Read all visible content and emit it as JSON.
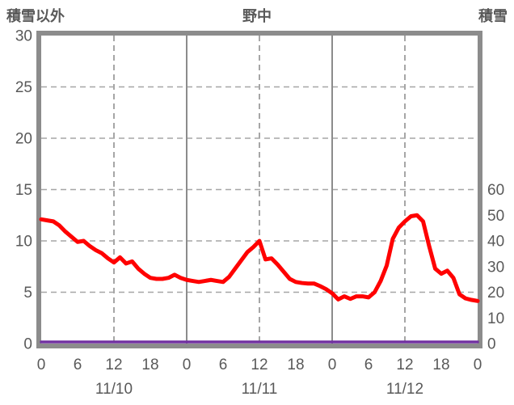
{
  "header": {
    "left_axis_title": "積雪以外",
    "chart_title": "野中",
    "right_axis_title": "積雪"
  },
  "colors": {
    "red_line": "#FF0000",
    "purple_line": "#7030A0",
    "axis_border": "#8C8C8C",
    "gridline_dashed": "#A6A6A6",
    "gridline_solid": "#8C8C8C",
    "label_text": "#595959"
  },
  "chart_data": {
    "type": "line",
    "title": "野中",
    "x_hours_range": [
      0,
      72
    ],
    "x_tick_interval_hours": 6,
    "x_tick_labels": [
      "0",
      "6",
      "12",
      "18",
      "0",
      "6",
      "12",
      "18",
      "0",
      "6",
      "12",
      "18",
      "0"
    ],
    "date_labels": [
      "11/10",
      "11/11",
      "11/12"
    ],
    "date_label_center_hours": [
      12,
      36,
      60
    ],
    "left_axis": {
      "label": "積雪以外",
      "ticks": [
        30,
        25,
        20,
        15,
        10,
        5,
        0
      ],
      "range": [
        0,
        30
      ]
    },
    "right_axis": {
      "label": "積雪",
      "ticks": [
        60,
        50,
        40,
        30,
        20,
        10,
        0
      ],
      "range": [
        0,
        60
      ]
    },
    "grid": {
      "horizontal_dashed_values": [
        25,
        20,
        15,
        10,
        5
      ],
      "vertical_dashed_hours": [
        12,
        36,
        60
      ],
      "vertical_solid_hours": [
        24,
        48
      ]
    },
    "series": [
      {
        "name": "積雪以外",
        "color_key": "red_line",
        "axis": "left",
        "x_step_hours": 1,
        "values": [
          12.1,
          12.0,
          11.9,
          11.5,
          10.9,
          10.4,
          9.9,
          10.0,
          9.5,
          9.1,
          8.8,
          8.3,
          7.9,
          8.4,
          7.8,
          8.0,
          7.3,
          6.8,
          6.4,
          6.3,
          6.3,
          6.4,
          6.7,
          6.4,
          6.2,
          6.1,
          6.0,
          6.1,
          6.2,
          6.1,
          6.0,
          6.5,
          7.3,
          8.1,
          8.9,
          9.4,
          10.0,
          8.2,
          8.3,
          7.7,
          7.0,
          6.3,
          6.0,
          5.9,
          5.85,
          5.85,
          5.6,
          5.3,
          4.9,
          4.3,
          4.6,
          4.35,
          4.6,
          4.6,
          4.5,
          5.0,
          6.1,
          7.6,
          10.2,
          11.3,
          11.9,
          12.4,
          12.5,
          11.9,
          9.5,
          7.3,
          6.8,
          7.1,
          6.4,
          4.8,
          4.4,
          4.25,
          4.15
        ]
      },
      {
        "name": "積雪",
        "color_key": "purple_line",
        "axis": "right",
        "x_step_hours": 1,
        "values": [
          0,
          0,
          0,
          0,
          0,
          0,
          0,
          0,
          0,
          0,
          0,
          0,
          0,
          0,
          0,
          0,
          0,
          0,
          0,
          0,
          0,
          0,
          0,
          0,
          0,
          0,
          0,
          0,
          0,
          0,
          0,
          0,
          0,
          0,
          0,
          0,
          0,
          0,
          0,
          0,
          0,
          0,
          0,
          0,
          0,
          0,
          0,
          0,
          0,
          0,
          0,
          0,
          0,
          0,
          0,
          0,
          0,
          0,
          0,
          0,
          0,
          0,
          0,
          0,
          0,
          0,
          0,
          0,
          0,
          0,
          0,
          0,
          0
        ]
      }
    ]
  }
}
